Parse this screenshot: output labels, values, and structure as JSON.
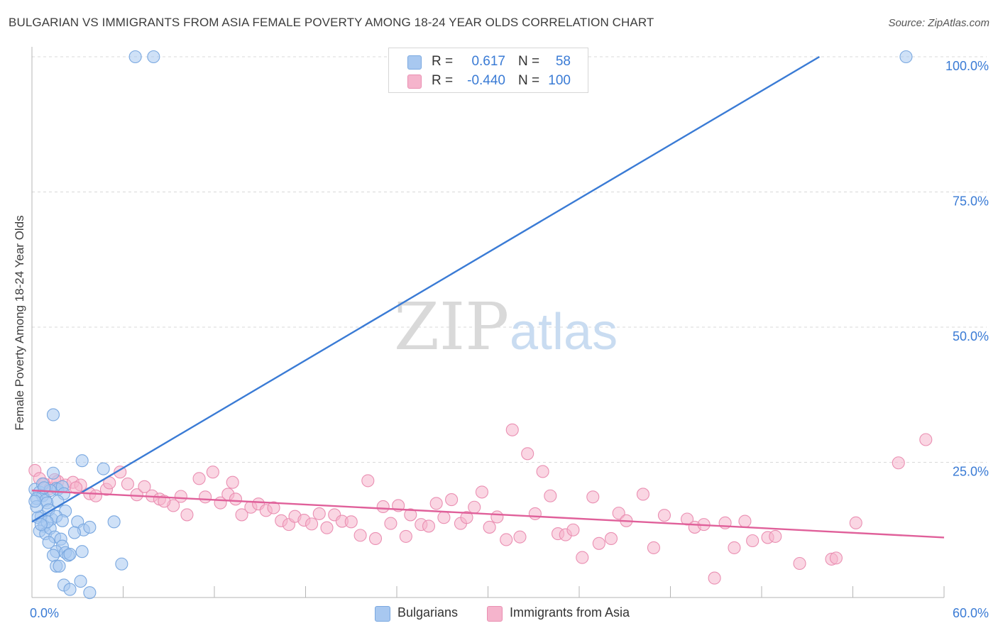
{
  "title": "BULGARIAN VS IMMIGRANTS FROM ASIA FEMALE POVERTY AMONG 18-24 YEAR OLDS CORRELATION CHART",
  "source": "Source: ZipAtlas.com",
  "colors": {
    "blue": "#3a7bd5",
    "blue_fill": "#a8c8f0",
    "blue_text": "#3a7bd5",
    "pink": "#e0609a",
    "pink_fill": "#f5b4cc",
    "grid": "#d9d9d9",
    "axis": "#b5b5b5"
  },
  "legend": {
    "rows": [
      {
        "r_label": "R =",
        "r_value": "0.617",
        "n_label": "N =",
        "n_value": "58"
      },
      {
        "r_label": "R =",
        "r_value": "-0.440",
        "n_label": "N =",
        "n_value": "100"
      }
    ]
  },
  "bottom_legend": [
    "Bulgarians",
    "Immigrants from Asia"
  ],
  "watermark": {
    "zip": "ZIP",
    "atlas": "atlas"
  },
  "chart_data": {
    "type": "scatter",
    "xlabel": "",
    "ylabel": "Female Poverty Among 18-24 Year Olds",
    "xlim": [
      0,
      60
    ],
    "ylim": [
      0,
      105
    ],
    "x_tick_labels": [
      "0.0%",
      "60.0%"
    ],
    "y_ticks": [
      25,
      50,
      75,
      100
    ],
    "y_tick_labels": [
      "25.0%",
      "50.0%",
      "75.0%",
      "100.0%"
    ],
    "grid": true,
    "series": [
      {
        "name": "Bulgarians",
        "R": 0.617,
        "N": 58,
        "trend": {
          "x": [
            0,
            51.8
          ],
          "y": [
            14,
            100
          ]
        },
        "points": [
          [
            6.8,
            100
          ],
          [
            8.0,
            100
          ],
          [
            57.5,
            100
          ],
          [
            1.4,
            33.8
          ],
          [
            3.3,
            25.3
          ],
          [
            4.7,
            23.8
          ],
          [
            1.4,
            23.0
          ],
          [
            0.2,
            20.0
          ],
          [
            0.5,
            19.5
          ],
          [
            0.7,
            18.8
          ],
          [
            0.3,
            18.3
          ],
          [
            0.9,
            18.0
          ],
          [
            1.0,
            17.5
          ],
          [
            1.6,
            20.2
          ],
          [
            1.7,
            20.0
          ],
          [
            2.0,
            20.5
          ],
          [
            2.1,
            19.2
          ],
          [
            0.6,
            15.0
          ],
          [
            0.4,
            14.8
          ],
          [
            1.3,
            14.5
          ],
          [
            0.8,
            13.2
          ],
          [
            1.1,
            16.2
          ],
          [
            1.7,
            17.8
          ],
          [
            2.2,
            16.0
          ],
          [
            1.6,
            15.0
          ],
          [
            2.0,
            14.2
          ],
          [
            0.5,
            12.3
          ],
          [
            0.9,
            11.8
          ],
          [
            1.2,
            12.8
          ],
          [
            3.0,
            14.0
          ],
          [
            3.4,
            12.5
          ],
          [
            3.8,
            13.0
          ],
          [
            5.4,
            14.0
          ],
          [
            1.5,
            11.2
          ],
          [
            1.9,
            10.8
          ],
          [
            2.0,
            9.5
          ],
          [
            1.1,
            10.2
          ],
          [
            1.6,
            8.5
          ],
          [
            2.2,
            8.3
          ],
          [
            2.4,
            7.8
          ],
          [
            1.4,
            7.8
          ],
          [
            2.5,
            8.0
          ],
          [
            3.3,
            8.5
          ],
          [
            1.6,
            5.8
          ],
          [
            1.8,
            5.8
          ],
          [
            5.9,
            6.2
          ],
          [
            3.2,
            3.0
          ],
          [
            2.1,
            2.3
          ],
          [
            2.5,
            1.5
          ],
          [
            3.8,
            0.9
          ],
          [
            0.3,
            16.8
          ],
          [
            0.7,
            21.0
          ],
          [
            1.2,
            19.8
          ],
          [
            0.8,
            20.3
          ],
          [
            0.2,
            17.8
          ],
          [
            2.8,
            12.0
          ],
          [
            1.0,
            14.0
          ],
          [
            0.6,
            13.5
          ]
        ]
      },
      {
        "name": "Immigrants from Asia",
        "R": -0.44,
        "N": 100,
        "trend": {
          "x": [
            0,
            60
          ],
          "y": [
            19.8,
            11.1
          ]
        },
        "points": [
          [
            0.2,
            23.5
          ],
          [
            0.5,
            22.0
          ],
          [
            0.8,
            21.0
          ],
          [
            1.2,
            20.2
          ],
          [
            1.7,
            21.5
          ],
          [
            2.2,
            20.8
          ],
          [
            2.7,
            21.3
          ],
          [
            3.2,
            20.8
          ],
          [
            3.8,
            19.2
          ],
          [
            4.2,
            18.8
          ],
          [
            4.9,
            20.0
          ],
          [
            5.8,
            23.2
          ],
          [
            6.3,
            21.0
          ],
          [
            6.9,
            19.0
          ],
          [
            7.4,
            20.5
          ],
          [
            7.9,
            18.8
          ],
          [
            8.4,
            18.2
          ],
          [
            9.3,
            17.0
          ],
          [
            9.8,
            18.7
          ],
          [
            10.2,
            15.3
          ],
          [
            11.0,
            22.0
          ],
          [
            11.4,
            18.6
          ],
          [
            11.9,
            23.2
          ],
          [
            12.4,
            17.5
          ],
          [
            12.9,
            19.1
          ],
          [
            13.4,
            18.2
          ],
          [
            13.8,
            15.3
          ],
          [
            14.4,
            16.7
          ],
          [
            14.9,
            17.3
          ],
          [
            15.4,
            16.1
          ],
          [
            15.9,
            16.6
          ],
          [
            16.4,
            14.2
          ],
          [
            16.9,
            13.5
          ],
          [
            17.3,
            15.0
          ],
          [
            17.9,
            14.3
          ],
          [
            18.4,
            13.6
          ],
          [
            18.9,
            15.5
          ],
          [
            19.4,
            12.9
          ],
          [
            19.9,
            15.3
          ],
          [
            20.4,
            14.1
          ],
          [
            21.0,
            14.0
          ],
          [
            21.6,
            11.5
          ],
          [
            22.1,
            21.6
          ],
          [
            22.6,
            10.9
          ],
          [
            23.1,
            16.8
          ],
          [
            23.6,
            13.7
          ],
          [
            24.1,
            17.0
          ],
          [
            24.6,
            11.3
          ],
          [
            24.9,
            15.3
          ],
          [
            25.6,
            13.5
          ],
          [
            26.1,
            13.2
          ],
          [
            26.6,
            17.4
          ],
          [
            27.1,
            14.8
          ],
          [
            27.6,
            18.1
          ],
          [
            28.2,
            13.7
          ],
          [
            28.6,
            14.8
          ],
          [
            29.1,
            16.7
          ],
          [
            29.6,
            19.5
          ],
          [
            30.1,
            13.0
          ],
          [
            30.6,
            14.9
          ],
          [
            31.2,
            10.7
          ],
          [
            31.6,
            31.0
          ],
          [
            32.1,
            11.2
          ],
          [
            32.6,
            26.6
          ],
          [
            33.1,
            15.5
          ],
          [
            33.6,
            23.3
          ],
          [
            34.1,
            18.8
          ],
          [
            34.6,
            11.8
          ],
          [
            35.1,
            11.6
          ],
          [
            35.6,
            12.5
          ],
          [
            36.2,
            7.4
          ],
          [
            36.9,
            18.6
          ],
          [
            37.3,
            10.0
          ],
          [
            38.1,
            10.9
          ],
          [
            38.6,
            15.6
          ],
          [
            39.1,
            14.2
          ],
          [
            40.2,
            19.1
          ],
          [
            40.9,
            9.2
          ],
          [
            41.6,
            15.2
          ],
          [
            43.1,
            14.5
          ],
          [
            43.6,
            13.0
          ],
          [
            44.2,
            13.5
          ],
          [
            44.9,
            3.6
          ],
          [
            45.6,
            13.8
          ],
          [
            46.2,
            9.2
          ],
          [
            46.9,
            14.1
          ],
          [
            47.4,
            10.5
          ],
          [
            48.4,
            11.1
          ],
          [
            48.9,
            11.3
          ],
          [
            50.5,
            6.3
          ],
          [
            52.6,
            7.1
          ],
          [
            52.9,
            7.3
          ],
          [
            54.2,
            13.8
          ],
          [
            57.0,
            24.9
          ],
          [
            58.8,
            29.2
          ],
          [
            1.5,
            21.8
          ],
          [
            2.9,
            20.3
          ],
          [
            5.1,
            21.2
          ],
          [
            8.7,
            17.8
          ],
          [
            13.2,
            21.3
          ]
        ]
      }
    ]
  }
}
